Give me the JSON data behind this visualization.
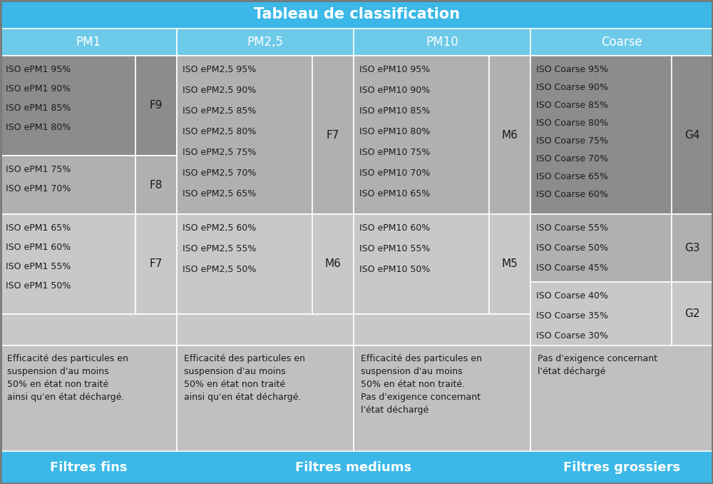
{
  "title": "Tableau de classification",
  "title_bg": "#3BB8E8",
  "title_color": "#FFFFFF",
  "header_bg": "#6DCAE8",
  "header_color": "#FFFFFF",
  "col_headers": [
    "PM1",
    "PM2,5",
    "PM10",
    "Coarse"
  ],
  "footer_labels": [
    "Filtres fins",
    "Filtres mediums",
    "Filtres grossiers"
  ],
  "footer_bg": "#3BB8E8",
  "footer_color": "#FFFFFF",
  "dark_gray": "#8C8C8C",
  "medium_gray": "#B0B0B0",
  "light_gray": "#C8C8C8",
  "lighter_gray": "#D4D4D4",
  "desc_gray": "#C0C0C0",
  "white_border": "#FFFFFF",
  "cell_text_color": "#1A1A1A",
  "fig_bg": "#E0E0E0"
}
